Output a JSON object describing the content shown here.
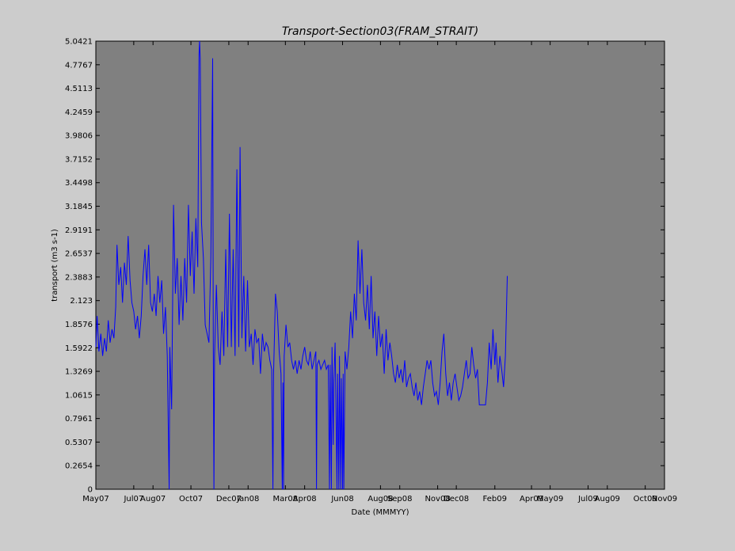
{
  "chart_data": {
    "type": "line",
    "title": "Transport-Section03(FRAM_STRAIT)",
    "xlabel": "Date (MMMYY)",
    "ylabel": "transport (m3 s-1)",
    "xlim": [
      "2007-05-01",
      "2009-11-01"
    ],
    "ylim": [
      0,
      5.0421
    ],
    "grid": false,
    "yticks": [
      "0",
      "0.2654",
      "0.5307",
      "0.7961",
      "1.0615",
      "1.3269",
      "1.5922",
      "1.8576",
      "2.123",
      "2.3883",
      "2.6537",
      "2.9191",
      "3.1845",
      "3.4498",
      "3.7152",
      "3.9806",
      "4.2459",
      "4.5113",
      "4.7767",
      "5.0421"
    ],
    "xticks": [
      {
        "date": "2007-05-01",
        "label": "May07"
      },
      {
        "date": "2007-07-01",
        "label": "Jul07"
      },
      {
        "date": "2007-08-01",
        "label": "Aug07"
      },
      {
        "date": "2007-10-01",
        "label": "Oct07"
      },
      {
        "date": "2007-12-01",
        "label": "Dec07"
      },
      {
        "date": "2008-01-01",
        "label": "Jan08"
      },
      {
        "date": "2008-03-01",
        "label": "Mar08"
      },
      {
        "date": "2008-04-01",
        "label": "Apr08"
      },
      {
        "date": "2008-06-01",
        "label": "Jun08"
      },
      {
        "date": "2008-08-01",
        "label": "Aug08"
      },
      {
        "date": "2008-09-01",
        "label": "Sep08"
      },
      {
        "date": "2008-11-01",
        "label": "Nov08"
      },
      {
        "date": "2008-12-01",
        "label": "Dec08"
      },
      {
        "date": "2009-02-01",
        "label": "Feb09"
      },
      {
        "date": "2009-04-01",
        "label": "Apr09"
      },
      {
        "date": "2009-05-01",
        "label": "May09"
      },
      {
        "date": "2009-07-01",
        "label": "Jul09"
      },
      {
        "date": "2009-08-01",
        "label": "Aug09"
      },
      {
        "date": "2009-10-01",
        "label": "Oct09"
      },
      {
        "date": "2009-11-01",
        "label": "Nov09"
      }
    ],
    "colors": {
      "background": "#cccccc",
      "plot_area": "#808080",
      "line": "#0000ff"
    },
    "series": [
      {
        "color": "#0000ff",
        "points": [
          [
            "2007-05-01",
            1.6
          ],
          [
            "2007-05-03",
            1.95
          ],
          [
            "2007-05-06",
            1.55
          ],
          [
            "2007-05-09",
            1.75
          ],
          [
            "2007-05-12",
            1.5
          ],
          [
            "2007-05-15",
            1.7
          ],
          [
            "2007-05-18",
            1.55
          ],
          [
            "2007-05-21",
            1.9
          ],
          [
            "2007-05-24",
            1.65
          ],
          [
            "2007-05-27",
            1.8
          ],
          [
            "2007-05-30",
            1.7
          ],
          [
            "2007-06-02",
            2.05
          ],
          [
            "2007-06-04",
            2.75
          ],
          [
            "2007-06-07",
            2.3
          ],
          [
            "2007-06-10",
            2.5
          ],
          [
            "2007-06-13",
            2.1
          ],
          [
            "2007-06-16",
            2.55
          ],
          [
            "2007-06-19",
            2.3
          ],
          [
            "2007-06-22",
            2.85
          ],
          [
            "2007-06-25",
            2.35
          ],
          [
            "2007-06-28",
            2.1
          ],
          [
            "2007-07-01",
            2.0
          ],
          [
            "2007-07-04",
            1.8
          ],
          [
            "2007-07-07",
            1.95
          ],
          [
            "2007-07-10",
            1.7
          ],
          [
            "2007-07-13",
            1.95
          ],
          [
            "2007-07-16",
            2.4
          ],
          [
            "2007-07-19",
            2.7
          ],
          [
            "2007-07-22",
            2.3
          ],
          [
            "2007-07-25",
            2.75
          ],
          [
            "2007-07-28",
            2.1
          ],
          [
            "2007-07-31",
            2.0
          ],
          [
            "2007-08-03",
            2.2
          ],
          [
            "2007-08-06",
            1.95
          ],
          [
            "2007-08-09",
            2.4
          ],
          [
            "2007-08-12",
            2.1
          ],
          [
            "2007-08-15",
            2.35
          ],
          [
            "2007-08-18",
            1.75
          ],
          [
            "2007-08-21",
            2.05
          ],
          [
            "2007-08-24",
            1.5
          ],
          [
            "2007-08-27",
            0.0
          ],
          [
            "2007-08-28",
            1.6
          ],
          [
            "2007-08-31",
            0.9
          ],
          [
            "2007-09-03",
            3.2
          ],
          [
            "2007-09-06",
            2.2
          ],
          [
            "2007-09-09",
            2.6
          ],
          [
            "2007-09-12",
            1.85
          ],
          [
            "2007-09-15",
            2.4
          ],
          [
            "2007-09-18",
            1.9
          ],
          [
            "2007-09-21",
            2.6
          ],
          [
            "2007-09-24",
            2.1
          ],
          [
            "2007-09-27",
            3.2
          ],
          [
            "2007-09-30",
            2.4
          ],
          [
            "2007-10-03",
            2.9
          ],
          [
            "2007-10-06",
            2.2
          ],
          [
            "2007-10-09",
            3.05
          ],
          [
            "2007-10-12",
            2.5
          ],
          [
            "2007-10-14",
            4.9
          ],
          [
            "2007-10-15",
            5.0421
          ],
          [
            "2007-10-16",
            4.85
          ],
          [
            "2007-10-18",
            3.0
          ],
          [
            "2007-10-21",
            2.6
          ],
          [
            "2007-10-24",
            1.85
          ],
          [
            "2007-10-27",
            1.75
          ],
          [
            "2007-10-30",
            1.65
          ],
          [
            "2007-11-02",
            2.6
          ],
          [
            "2007-11-05",
            4.85
          ],
          [
            "2007-11-06",
            1.6
          ],
          [
            "2007-11-07",
            0.0
          ],
          [
            "2007-11-08",
            1.5
          ],
          [
            "2007-11-11",
            2.3
          ],
          [
            "2007-11-14",
            1.6
          ],
          [
            "2007-11-17",
            1.4
          ],
          [
            "2007-11-20",
            2.0
          ],
          [
            "2007-11-23",
            1.5
          ],
          [
            "2007-11-26",
            2.7
          ],
          [
            "2007-11-29",
            1.6
          ],
          [
            "2007-12-02",
            3.1
          ],
          [
            "2007-12-05",
            1.6
          ],
          [
            "2007-12-08",
            2.7
          ],
          [
            "2007-12-11",
            1.5
          ],
          [
            "2007-12-14",
            3.6
          ],
          [
            "2007-12-17",
            1.6
          ],
          [
            "2007-12-19",
            3.85
          ],
          [
            "2007-12-22",
            1.7
          ],
          [
            "2007-12-25",
            2.4
          ],
          [
            "2007-12-28",
            1.55
          ],
          [
            "2007-12-31",
            2.35
          ],
          [
            "2008-01-03",
            1.6
          ],
          [
            "2008-01-06",
            1.75
          ],
          [
            "2008-01-09",
            1.4
          ],
          [
            "2008-01-12",
            1.8
          ],
          [
            "2008-01-15",
            1.65
          ],
          [
            "2008-01-18",
            1.7
          ],
          [
            "2008-01-21",
            1.3
          ],
          [
            "2008-01-24",
            1.75
          ],
          [
            "2008-01-27",
            1.55
          ],
          [
            "2008-01-30",
            1.65
          ],
          [
            "2008-02-02",
            1.6
          ],
          [
            "2008-02-05",
            1.45
          ],
          [
            "2008-02-08",
            1.35
          ],
          [
            "2008-02-10",
            0.0
          ],
          [
            "2008-02-11",
            1.3
          ],
          [
            "2008-02-14",
            2.2
          ],
          [
            "2008-02-17",
            2.0
          ],
          [
            "2008-02-20",
            1.55
          ],
          [
            "2008-02-23",
            1.3
          ],
          [
            "2008-02-25",
            0.0
          ],
          [
            "2008-02-26",
            1.2
          ],
          [
            "2008-02-27",
            0.0
          ],
          [
            "2008-02-28",
            1.5
          ],
          [
            "2008-03-02",
            1.85
          ],
          [
            "2008-03-05",
            1.6
          ],
          [
            "2008-03-08",
            1.65
          ],
          [
            "2008-03-11",
            1.45
          ],
          [
            "2008-03-14",
            1.35
          ],
          [
            "2008-03-17",
            1.45
          ],
          [
            "2008-03-20",
            1.3
          ],
          [
            "2008-03-23",
            1.45
          ],
          [
            "2008-03-26",
            1.35
          ],
          [
            "2008-03-29",
            1.5
          ],
          [
            "2008-04-01",
            1.6
          ],
          [
            "2008-04-04",
            1.45
          ],
          [
            "2008-04-07",
            1.4
          ],
          [
            "2008-04-10",
            1.55
          ],
          [
            "2008-04-13",
            1.35
          ],
          [
            "2008-04-16",
            1.45
          ],
          [
            "2008-04-19",
            1.55
          ],
          [
            "2008-04-20",
            0.0
          ],
          [
            "2008-04-21",
            1.4
          ],
          [
            "2008-04-24",
            1.45
          ],
          [
            "2008-04-27",
            1.35
          ],
          [
            "2008-04-30",
            1.4
          ],
          [
            "2008-05-03",
            1.45
          ],
          [
            "2008-05-06",
            1.35
          ],
          [
            "2008-05-09",
            1.4
          ],
          [
            "2008-05-11",
            0.0
          ],
          [
            "2008-05-12",
            1.4
          ],
          [
            "2008-05-14",
            0.0
          ],
          [
            "2008-05-15",
            1.6
          ],
          [
            "2008-05-17",
            0.5
          ],
          [
            "2008-05-18",
            1.2
          ],
          [
            "2008-05-20",
            1.65
          ],
          [
            "2008-05-23",
            0.0
          ],
          [
            "2008-05-24",
            1.3
          ],
          [
            "2008-05-26",
            0.0
          ],
          [
            "2008-05-27",
            1.5
          ],
          [
            "2008-05-29",
            0.0
          ],
          [
            "2008-05-30",
            1.25
          ],
          [
            "2008-06-01",
            0.0
          ],
          [
            "2008-06-02",
            1.3
          ],
          [
            "2008-06-03",
            0.0
          ],
          [
            "2008-06-05",
            1.55
          ],
          [
            "2008-06-08",
            1.35
          ],
          [
            "2008-06-11",
            1.6
          ],
          [
            "2008-06-14",
            2.0
          ],
          [
            "2008-06-17",
            1.7
          ],
          [
            "2008-06-20",
            2.2
          ],
          [
            "2008-06-23",
            1.9
          ],
          [
            "2008-06-26",
            2.8
          ],
          [
            "2008-06-29",
            2.2
          ],
          [
            "2008-07-02",
            2.7
          ],
          [
            "2008-07-05",
            2.1
          ],
          [
            "2008-07-08",
            1.9
          ],
          [
            "2008-07-11",
            2.3
          ],
          [
            "2008-07-14",
            1.8
          ],
          [
            "2008-07-17",
            2.4
          ],
          [
            "2008-07-20",
            1.7
          ],
          [
            "2008-07-23",
            2.0
          ],
          [
            "2008-07-26",
            1.5
          ],
          [
            "2008-07-29",
            1.95
          ],
          [
            "2008-08-01",
            1.6
          ],
          [
            "2008-08-04",
            1.75
          ],
          [
            "2008-08-07",
            1.3
          ],
          [
            "2008-08-10",
            1.8
          ],
          [
            "2008-08-13",
            1.45
          ],
          [
            "2008-08-16",
            1.65
          ],
          [
            "2008-08-19",
            1.5
          ],
          [
            "2008-08-22",
            1.3
          ],
          [
            "2008-08-25",
            1.2
          ],
          [
            "2008-08-28",
            1.4
          ],
          [
            "2008-08-31",
            1.25
          ],
          [
            "2008-09-03",
            1.35
          ],
          [
            "2008-09-06",
            1.2
          ],
          [
            "2008-09-09",
            1.45
          ],
          [
            "2008-09-12",
            1.15
          ],
          [
            "2008-09-15",
            1.25
          ],
          [
            "2008-09-18",
            1.3
          ],
          [
            "2008-09-21",
            1.15
          ],
          [
            "2008-09-24",
            1.05
          ],
          [
            "2008-09-27",
            1.2
          ],
          [
            "2008-09-30",
            1.0
          ],
          [
            "2008-10-03",
            1.1
          ],
          [
            "2008-10-06",
            0.95
          ],
          [
            "2008-10-09",
            1.15
          ],
          [
            "2008-10-12",
            1.3
          ],
          [
            "2008-10-15",
            1.45
          ],
          [
            "2008-10-18",
            1.35
          ],
          [
            "2008-10-21",
            1.45
          ],
          [
            "2008-10-24",
            1.2
          ],
          [
            "2008-10-27",
            1.05
          ],
          [
            "2008-10-30",
            1.1
          ],
          [
            "2008-11-02",
            0.95
          ],
          [
            "2008-11-05",
            1.2
          ],
          [
            "2008-11-08",
            1.55
          ],
          [
            "2008-11-11",
            1.75
          ],
          [
            "2008-11-14",
            1.3
          ],
          [
            "2008-11-17",
            1.05
          ],
          [
            "2008-11-20",
            1.2
          ],
          [
            "2008-11-23",
            1.0
          ],
          [
            "2008-11-26",
            1.2
          ],
          [
            "2008-11-29",
            1.3
          ],
          [
            "2008-12-02",
            1.15
          ],
          [
            "2008-12-05",
            1.0
          ],
          [
            "2008-12-08",
            1.05
          ],
          [
            "2008-12-11",
            1.15
          ],
          [
            "2008-12-14",
            1.3
          ],
          [
            "2008-12-17",
            1.45
          ],
          [
            "2008-12-20",
            1.25
          ],
          [
            "2008-12-23",
            1.3
          ],
          [
            "2008-12-26",
            1.6
          ],
          [
            "2008-12-29",
            1.4
          ],
          [
            "2009-01-01",
            1.25
          ],
          [
            "2009-01-04",
            1.35
          ],
          [
            "2009-01-07",
            0.95
          ],
          [
            "2009-01-09",
            0.95
          ],
          [
            "2009-01-13",
            0.95
          ],
          [
            "2009-01-17",
            0.95
          ],
          [
            "2009-01-20",
            1.2
          ],
          [
            "2009-01-23",
            1.65
          ],
          [
            "2009-01-26",
            1.35
          ],
          [
            "2009-01-29",
            1.8
          ],
          [
            "2009-02-01",
            1.4
          ],
          [
            "2009-02-03",
            1.65
          ],
          [
            "2009-02-06",
            1.2
          ],
          [
            "2009-02-09",
            1.5
          ],
          [
            "2009-02-12",
            1.35
          ],
          [
            "2009-02-15",
            1.15
          ],
          [
            "2009-02-18",
            1.5
          ],
          [
            "2009-02-21",
            2.4
          ]
        ]
      }
    ]
  }
}
